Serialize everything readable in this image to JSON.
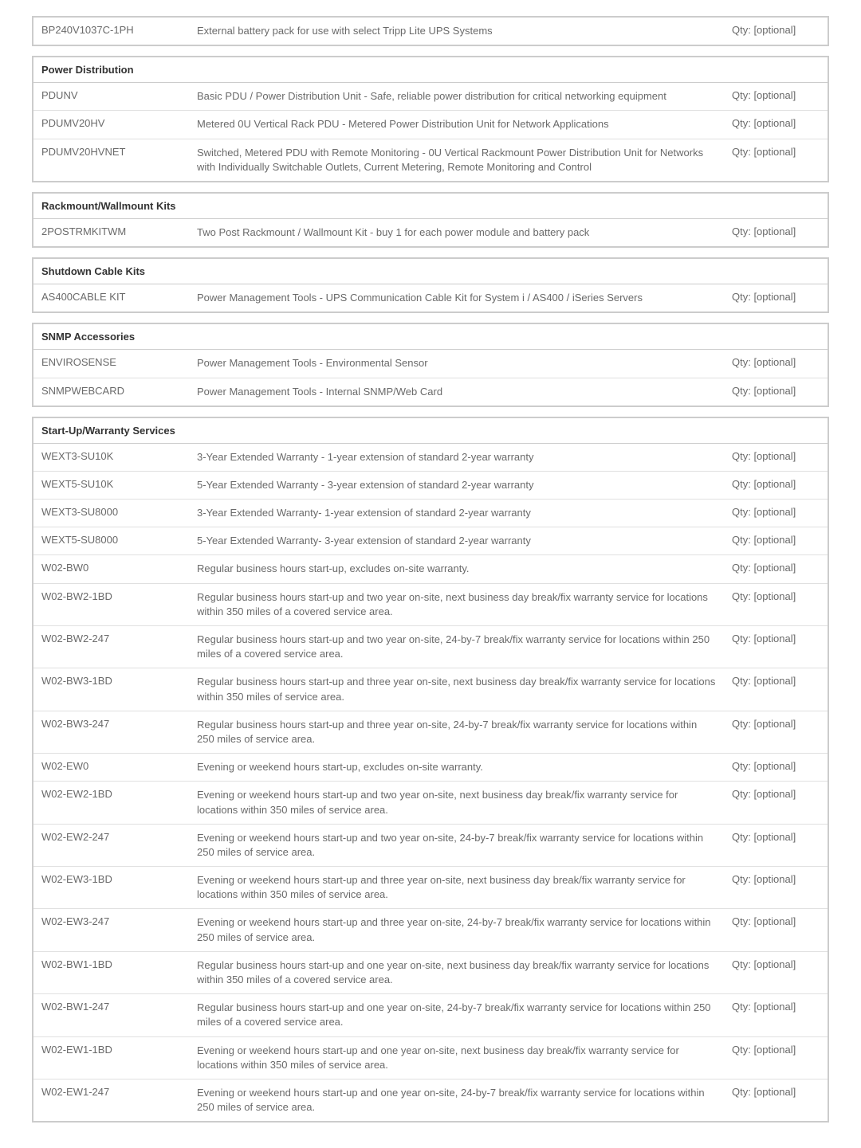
{
  "colors": {
    "border": "#cccccc",
    "row_divider": "#e0e0e0",
    "text": "#5a5a5a",
    "header_text": "#333333",
    "background": "#ffffff"
  },
  "layout": {
    "col_sku_width": 195,
    "col_qty_width": 130,
    "fontsize": 13,
    "header_fontweight": "bold"
  },
  "standalone": {
    "sku": "BP240V1037C-1PH",
    "desc": "External battery pack for use with select Tripp Lite UPS Systems",
    "qty": "Qty: [optional]"
  },
  "sections": [
    {
      "title": "Power Distribution",
      "rows": [
        {
          "sku": "PDUNV",
          "desc": "Basic PDU / Power Distribution Unit - Safe, reliable power distribution for critical networking equipment",
          "qty": "Qty: [optional]"
        },
        {
          "sku": "PDUMV20HV",
          "desc": "Metered 0U Vertical Rack PDU - Metered Power Distribution Unit for Network Applications",
          "qty": "Qty: [optional]"
        },
        {
          "sku": "PDUMV20HVNET",
          "desc": "Switched, Metered PDU with Remote Monitoring - 0U Vertical Rackmount Power Distribution Unit for Networks with Individually Switchable Outlets, Current Metering, Remote Monitoring and Control",
          "qty": "Qty: [optional]"
        }
      ]
    },
    {
      "title": "Rackmount/Wallmount Kits",
      "rows": [
        {
          "sku": "2POSTRMKITWM",
          "desc": "Two Post Rackmount / Wallmount Kit - buy 1 for each power module and battery pack",
          "qty": "Qty: [optional]"
        }
      ]
    },
    {
      "title": "Shutdown Cable Kits",
      "rows": [
        {
          "sku": "AS400CABLE KIT",
          "desc": "Power Management Tools - UPS Communication Cable Kit for System i / AS400 / iSeries Servers",
          "qty": "Qty: [optional]"
        }
      ]
    },
    {
      "title": "SNMP Accessories",
      "rows": [
        {
          "sku": "ENVIROSENSE",
          "desc": "Power Management Tools - Environmental Sensor",
          "qty": "Qty: [optional]"
        },
        {
          "sku": "SNMPWEBCARD",
          "desc": "Power Management Tools - Internal SNMP/Web Card",
          "qty": "Qty: [optional]"
        }
      ]
    },
    {
      "title": "Start-Up/Warranty Services",
      "rows": [
        {
          "sku": "WEXT3-SU10K",
          "desc": "3-Year Extended Warranty - 1-year extension of standard 2-year warranty",
          "qty": "Qty: [optional]"
        },
        {
          "sku": "WEXT5-SU10K",
          "desc": "5-Year Extended Warranty - 3-year extension of standard 2-year warranty",
          "qty": "Qty: [optional]"
        },
        {
          "sku": "WEXT3-SU8000",
          "desc": "3-Year Extended Warranty- 1-year extension of standard 2-year warranty",
          "qty": "Qty: [optional]"
        },
        {
          "sku": "WEXT5-SU8000",
          "desc": "5-Year Extended Warranty- 3-year extension of standard 2-year warranty",
          "qty": "Qty: [optional]"
        },
        {
          "sku": "W02-BW0",
          "desc": "Regular business hours start-up, excludes on-site warranty.",
          "qty": "Qty: [optional]"
        },
        {
          "sku": "W02-BW2-1BD",
          "desc": "Regular business hours start-up and two year on-site, next business day break/fix warranty service for locations within 350 miles of a covered service area.",
          "qty": "Qty: [optional]"
        },
        {
          "sku": "W02-BW2-247",
          "desc": "Regular business hours start-up and two year on-site, 24-by-7 break/fix warranty service for locations within 250 miles of a covered service area.",
          "qty": "Qty: [optional]"
        },
        {
          "sku": "W02-BW3-1BD",
          "desc": "Regular business hours start-up and three year on-site, next business day break/fix warranty service for locations within 350 miles of service area.",
          "qty": "Qty: [optional]"
        },
        {
          "sku": "W02-BW3-247",
          "desc": "Regular business hours start-up and three year on-site, 24-by-7 break/fix warranty service for locations within 250 miles of service area.",
          "qty": "Qty: [optional]"
        },
        {
          "sku": "W02-EW0",
          "desc": "Evening or weekend hours start-up, excludes on-site warranty.",
          "qty": "Qty: [optional]"
        },
        {
          "sku": "W02-EW2-1BD",
          "desc": "Evening or weekend hours start-up and two year on-site, next business day break/fix warranty service for locations within 350 miles of service area.",
          "qty": "Qty: [optional]"
        },
        {
          "sku": "W02-EW2-247",
          "desc": "Evening or weekend hours start-up and two year on-site, 24-by-7 break/fix warranty service for locations within 250 miles of service area.",
          "qty": "Qty: [optional]"
        },
        {
          "sku": "W02-EW3-1BD",
          "desc": "Evening or weekend hours start-up and three year on-site, next business day break/fix warranty service for locations within 350 miles of service area.",
          "qty": "Qty: [optional]"
        },
        {
          "sku": "W02-EW3-247",
          "desc": "Evening or weekend hours start-up and three year on-site, 24-by-7 break/fix warranty service for locations within 250 miles of service area.",
          "qty": "Qty: [optional]"
        },
        {
          "sku": "W02-BW1-1BD",
          "desc": "Regular business hours start-up and one year on-site, next business day break/fix warranty service for locations within 350 miles of a covered service area.",
          "qty": "Qty: [optional]"
        },
        {
          "sku": "W02-BW1-247",
          "desc": "Regular business hours start-up and one year on-site, 24-by-7 break/fix warranty service for locations within 250 miles of a covered service area.",
          "qty": "Qty: [optional]"
        },
        {
          "sku": "W02-EW1-1BD",
          "desc": "Evening or weekend hours start-up and one year on-site, next business day break/fix warranty service for locations within 350 miles of service area.",
          "qty": "Qty: [optional]"
        },
        {
          "sku": "W02-EW1-247",
          "desc": "Evening or weekend hours start-up and one year on-site, 24-by-7 break/fix warranty service for locations within 250 miles of service area.",
          "qty": "Qty: [optional]"
        }
      ]
    }
  ]
}
